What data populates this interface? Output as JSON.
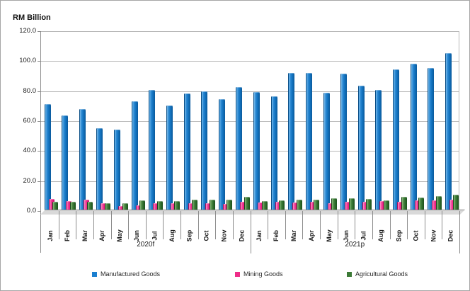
{
  "chart_data": {
    "type": "bar",
    "title": "RM Billion",
    "ylabel": "RM Billion",
    "xlabel": "",
    "ylim": [
      0,
      120
    ],
    "ytick_step": 20,
    "ytick_decimals": 1,
    "grid": true,
    "legend_position": "bottom",
    "categories": [
      "Jan",
      "Feb",
      "Mar",
      "Apr",
      "May",
      "Jun",
      "Jul",
      "Aug",
      "Sep",
      "Oct",
      "Nov",
      "Dec",
      "Jan",
      "Feb",
      "Mar",
      "Apr",
      "May",
      "Jun",
      "Jul",
      "Aug",
      "Sep",
      "Oct",
      "Nov",
      "Dec"
    ],
    "year_groups": [
      {
        "label": "2020f",
        "span": 12
      },
      {
        "label": "2021p",
        "span": 12
      }
    ],
    "series": [
      {
        "name": "Manufactured Goods",
        "color": "#1B7FD0",
        "values": [
          71.5,
          64.0,
          68.0,
          55.5,
          54.5,
          73.0,
          81.0,
          70.5,
          78.5,
          80.0,
          74.5,
          82.5,
          79.5,
          76.5,
          92.0,
          92.0,
          79.0,
          91.5,
          83.5,
          81.0,
          94.5,
          98.5,
          95.5,
          105.5
        ]
      },
      {
        "name": "Mining Goods",
        "color": "#EE2D88",
        "values": [
          8.0,
          6.5,
          7.5,
          5.0,
          3.5,
          4.0,
          5.0,
          5.0,
          5.0,
          5.0,
          4.5,
          6.0,
          5.5,
          6.0,
          5.5,
          6.0,
          5.0,
          6.0,
          6.0,
          6.5,
          6.0,
          7.0,
          7.0,
          7.5
        ]
      },
      {
        "name": "Agricultural Goods",
        "color": "#3C7A37",
        "values": [
          6.0,
          6.0,
          6.0,
          5.0,
          5.0,
          7.0,
          6.5,
          6.5,
          7.5,
          7.5,
          7.5,
          9.5,
          6.5,
          7.0,
          7.5,
          7.5,
          8.5,
          8.5,
          8.0,
          7.0,
          9.5,
          9.0,
          10.0,
          11.0
        ]
      }
    ]
  }
}
